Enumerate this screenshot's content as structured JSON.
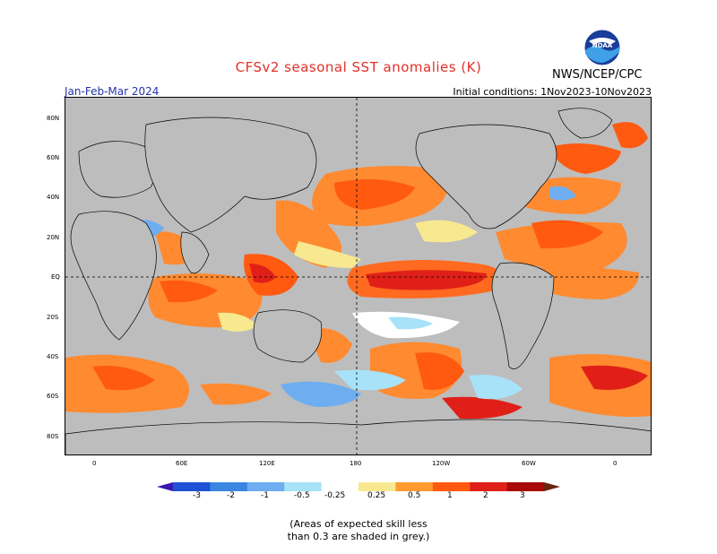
{
  "header": {
    "title": "CFSv2 seasonal SST anomalies (K)",
    "agency": "NWS/NCEP/CPC",
    "season": "Jan-Feb-Mar 2024",
    "initial_conditions": "Initial conditions: 1Nov2023-10Nov2023",
    "logo_text": "NOAA"
  },
  "map": {
    "lat_labels": [
      "80N",
      "60N",
      "40N",
      "20N",
      "EQ",
      "20S",
      "40S",
      "60S",
      "80S"
    ],
    "lon_labels": [
      "0",
      "60E",
      "120E",
      "180",
      "120W",
      "60W",
      "0"
    ]
  },
  "colorbar": {
    "labels": [
      "-3",
      "-2",
      "-1",
      "-0.5",
      "-0.25",
      "0.25",
      "0.5",
      "1",
      "2",
      "3"
    ],
    "colors": [
      "#3a18b0",
      "#1d52d4",
      "#3a86e0",
      "#6eaef0",
      "#a8e2f8",
      "#ffffff",
      "#f8e890",
      "#ff9a30",
      "#ff5a10",
      "#e02018",
      "#a80808",
      "#6a2410"
    ]
  },
  "footnote": {
    "line1": "(Areas of expected skill less",
    "line2": "than 0.3 are shaded in grey.)"
  }
}
